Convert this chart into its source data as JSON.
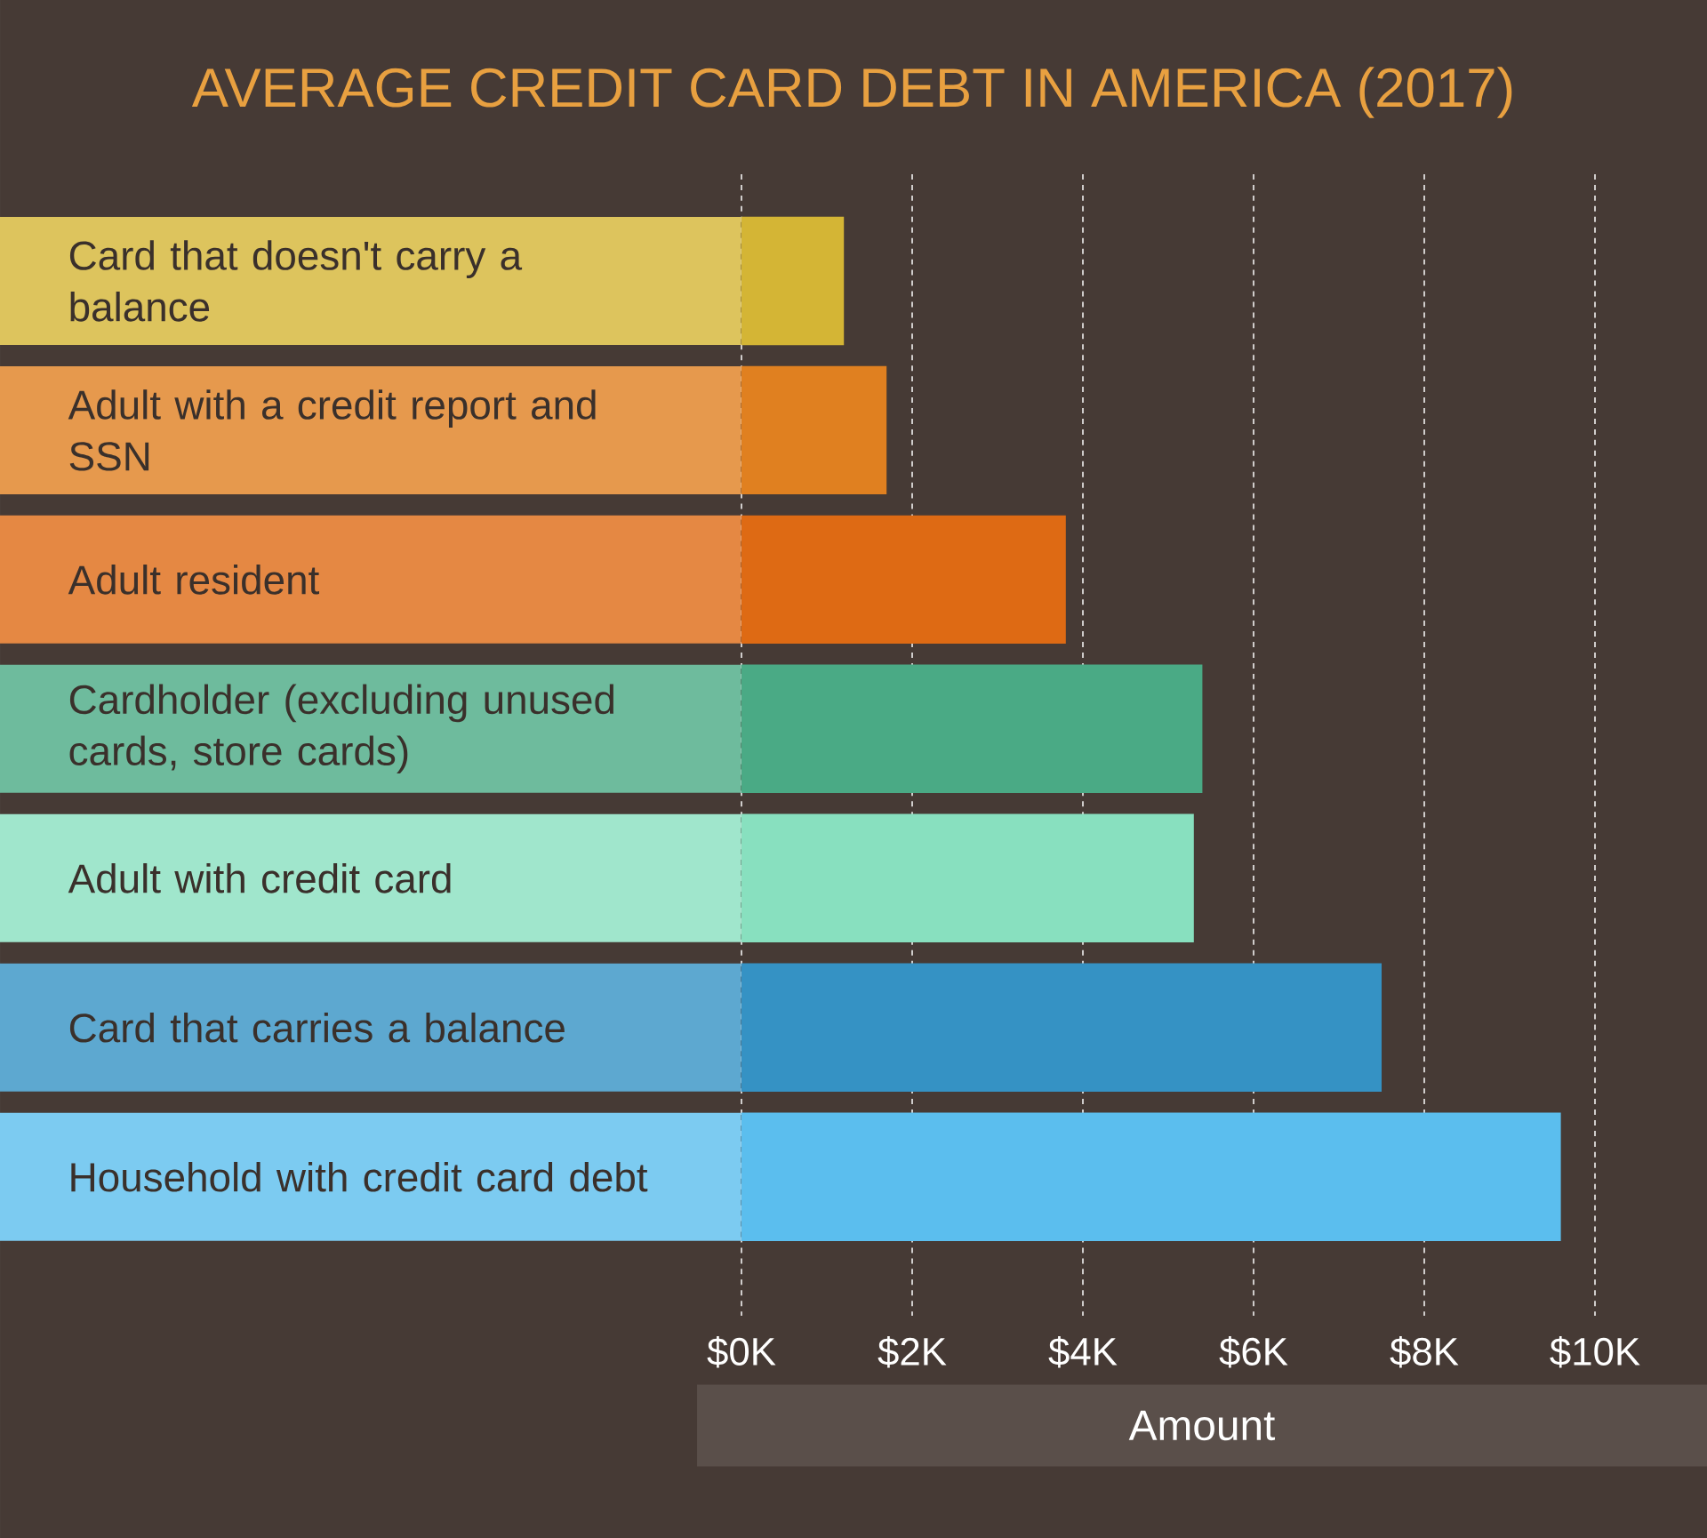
{
  "chart_data": {
    "type": "bar",
    "orientation": "horizontal",
    "title": "AVERAGE CREDIT CARD DEBT IN AMERICA (2017)",
    "xlabel": "Amount",
    "categories": [
      "Card that doesn't carry a balance",
      "Adult with a credit report and SSN",
      "Adult resident",
      "Cardholder (excluding unused cards, store cards)",
      "Adult with credit card",
      "Card that carries a balance",
      "Household with credit card debt"
    ],
    "values": [
      1200,
      1700,
      3800,
      5400,
      5300,
      7500,
      9600
    ],
    "colors": [
      "#d4b535",
      "#e08020",
      "#de6a14",
      "#4aaa85",
      "#88e0bf",
      "#3592c4",
      "#5bbeee"
    ],
    "xlim": [
      0,
      10000
    ],
    "xticks": [
      {
        "value": 0,
        "label": "$0K"
      },
      {
        "value": 2000,
        "label": "$2K"
      },
      {
        "value": 4000,
        "label": "$4K"
      },
      {
        "value": 6000,
        "label": "$6K"
      },
      {
        "value": 8000,
        "label": "$8K"
      },
      {
        "value": 10000,
        "label": "$10K"
      }
    ],
    "grid": "x"
  }
}
